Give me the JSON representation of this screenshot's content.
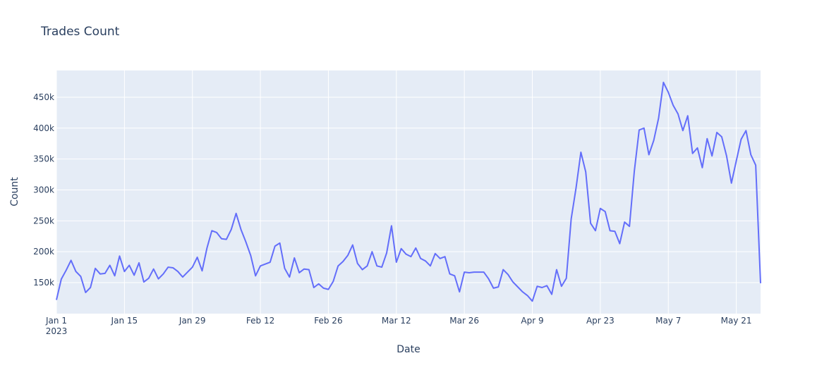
{
  "chart_data": {
    "type": "line",
    "title": "Trades Count",
    "x_label": "Date",
    "y_label": "Count",
    "x": [
      "2023-01-01",
      "2023-01-02",
      "2023-01-03",
      "2023-01-04",
      "2023-01-05",
      "2023-01-06",
      "2023-01-07",
      "2023-01-08",
      "2023-01-09",
      "2023-01-10",
      "2023-01-11",
      "2023-01-12",
      "2023-01-13",
      "2023-01-14",
      "2023-01-15",
      "2023-01-16",
      "2023-01-17",
      "2023-01-18",
      "2023-01-19",
      "2023-01-20",
      "2023-01-21",
      "2023-01-22",
      "2023-01-23",
      "2023-01-24",
      "2023-01-25",
      "2023-01-26",
      "2023-01-27",
      "2023-01-28",
      "2023-01-29",
      "2023-01-30",
      "2023-01-31",
      "2023-02-01",
      "2023-02-02",
      "2023-02-03",
      "2023-02-04",
      "2023-02-05",
      "2023-02-06",
      "2023-02-07",
      "2023-02-08",
      "2023-02-09",
      "2023-02-10",
      "2023-02-11",
      "2023-02-12",
      "2023-02-13",
      "2023-02-14",
      "2023-02-15",
      "2023-02-16",
      "2023-02-17",
      "2023-02-18",
      "2023-02-19",
      "2023-02-20",
      "2023-02-21",
      "2023-02-22",
      "2023-02-23",
      "2023-02-24",
      "2023-02-25",
      "2023-02-26",
      "2023-02-27",
      "2023-02-28",
      "2023-03-01",
      "2023-03-02",
      "2023-03-03",
      "2023-03-04",
      "2023-03-05",
      "2023-03-06",
      "2023-03-07",
      "2023-03-08",
      "2023-03-09",
      "2023-03-10",
      "2023-03-11",
      "2023-03-12",
      "2023-03-13",
      "2023-03-14",
      "2023-03-15",
      "2023-03-16",
      "2023-03-17",
      "2023-03-18",
      "2023-03-19",
      "2023-03-20",
      "2023-03-21",
      "2023-03-22",
      "2023-03-23",
      "2023-03-24",
      "2023-03-25",
      "2023-03-26",
      "2023-03-27",
      "2023-03-28",
      "2023-03-29",
      "2023-03-30",
      "2023-03-31",
      "2023-04-01",
      "2023-04-02",
      "2023-04-03",
      "2023-04-04",
      "2023-04-05",
      "2023-04-06",
      "2023-04-07",
      "2023-04-08",
      "2023-04-09",
      "2023-04-10",
      "2023-04-11",
      "2023-04-12",
      "2023-04-13",
      "2023-04-14",
      "2023-04-15",
      "2023-04-16",
      "2023-04-17",
      "2023-04-18",
      "2023-04-19",
      "2023-04-20",
      "2023-04-21",
      "2023-04-22",
      "2023-04-23",
      "2023-04-24",
      "2023-04-25",
      "2023-04-26",
      "2023-04-27",
      "2023-04-28",
      "2023-04-29",
      "2023-04-30",
      "2023-05-01",
      "2023-05-02",
      "2023-05-03",
      "2023-05-04",
      "2023-05-05",
      "2023-05-06",
      "2023-05-07",
      "2023-05-08",
      "2023-05-09",
      "2023-05-10",
      "2023-05-11",
      "2023-05-12",
      "2023-05-13",
      "2023-05-14",
      "2023-05-15",
      "2023-05-16",
      "2023-05-17",
      "2023-05-18",
      "2023-05-19",
      "2023-05-20",
      "2023-05-21",
      "2023-05-22",
      "2023-05-23",
      "2023-05-24",
      "2023-05-25",
      "2023-05-26"
    ],
    "series": [
      {
        "name": "Count",
        "color": "#636efa",
        "values": [
          122000,
          155700,
          170000,
          186000,
          168000,
          160000,
          134000,
          142000,
          173000,
          164000,
          165000,
          178000,
          161000,
          193000,
          168000,
          178000,
          162000,
          182000,
          151000,
          157000,
          172000,
          156000,
          164000,
          175000,
          174000,
          168000,
          159000,
          167000,
          175000,
          191000,
          169000,
          206000,
          234000,
          231000,
          221000,
          220000,
          236000,
          262000,
          236000,
          216000,
          194000,
          161000,
          177000,
          180000,
          183000,
          209000,
          214000,
          173000,
          159000,
          190000,
          166000,
          172000,
          171000,
          142000,
          148000,
          141000,
          139000,
          152000,
          177000,
          184000,
          194000,
          211000,
          181000,
          171000,
          177000,
          200000,
          177000,
          175000,
          198000,
          242000,
          183000,
          205000,
          196000,
          192000,
          206000,
          189000,
          185000,
          177000,
          197000,
          189000,
          192000,
          164000,
          161000,
          135000,
          167000,
          166000,
          167000,
          167000,
          167000,
          156000,
          141000,
          143000,
          171000,
          163000,
          151000,
          143000,
          135000,
          129000,
          120000,
          144000,
          142000,
          145000,
          131000,
          171000,
          144000,
          157000,
          253000,
          303000,
          361000,
          329000,
          246000,
          234000,
          270000,
          265000,
          234000,
          233000,
          213000,
          248000,
          241000,
          330000,
          397000,
          400000,
          357000,
          380000,
          416000,
          474000,
          458000,
          437000,
          423000,
          396000,
          420000,
          359000,
          368000,
          336000,
          383000,
          355000,
          393000,
          386000,
          355000,
          311000,
          347000,
          382000,
          396000,
          357000,
          340000,
          149000
        ]
      }
    ],
    "xlim": [
      "2023-01-01",
      "2023-05-26"
    ],
    "xticks": [
      {
        "value": "2023-01-01",
        "label": "Jan 1\n2023"
      },
      {
        "value": "2023-01-15",
        "label": "Jan 15"
      },
      {
        "value": "2023-01-29",
        "label": "Jan 29"
      },
      {
        "value": "2023-02-12",
        "label": "Feb 12"
      },
      {
        "value": "2023-02-26",
        "label": "Feb 26"
      },
      {
        "value": "2023-03-12",
        "label": "Mar 12"
      },
      {
        "value": "2023-03-26",
        "label": "Mar 26"
      },
      {
        "value": "2023-04-09",
        "label": "Apr 9"
      },
      {
        "value": "2023-04-23",
        "label": "Apr 23"
      },
      {
        "value": "2023-05-07",
        "label": "May 7"
      },
      {
        "value": "2023-05-21",
        "label": "May 21"
      }
    ],
    "ylim": [
      99800,
      493300
    ],
    "yticks": [
      {
        "value": 150000,
        "label": "150k"
      },
      {
        "value": 200000,
        "label": "200k"
      },
      {
        "value": 250000,
        "label": "250k"
      },
      {
        "value": 300000,
        "label": "300k"
      },
      {
        "value": 350000,
        "label": "350k"
      },
      {
        "value": 400000,
        "label": "400k"
      },
      {
        "value": 450000,
        "label": "450k"
      }
    ],
    "grid": true
  }
}
